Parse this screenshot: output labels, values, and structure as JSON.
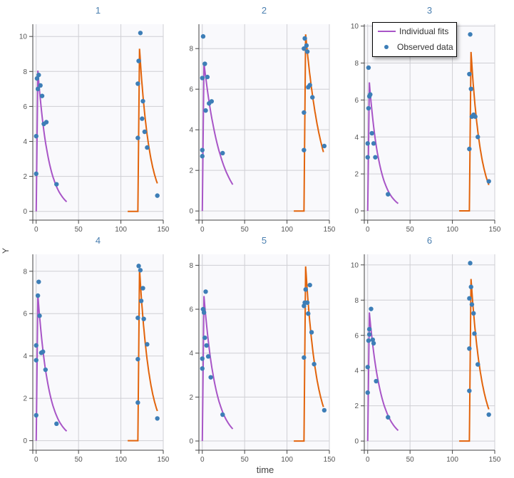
{
  "chart_data": {
    "type": "line",
    "xlabel": "time",
    "ylabel": "Y",
    "grid": true,
    "legend_placement": "top-right",
    "legend": [
      {
        "name": "Individual fits",
        "marker": "line",
        "color": "#a855c7"
      },
      {
        "name": "Observed data",
        "marker": "point",
        "color": "#3d7eb7"
      }
    ],
    "colors": {
      "fit_dose1": "#a855c7",
      "fit_dose2": "#e2640c",
      "observed": "#3d7eb7",
      "plot_bg": "#f9f9fc",
      "grid": "#cfcfd4",
      "title": "#4a7fb0"
    },
    "xlim": [
      -4,
      150
    ],
    "xticks": [
      0,
      50,
      100,
      150
    ],
    "panels": [
      {
        "title": "1",
        "ylim": [
          -0.5,
          10.7
        ],
        "yticks": [
          0,
          2,
          4,
          6,
          8,
          10
        ],
        "fit1": {
          "t": [
            0,
            2,
            36
          ],
          "y": [
            0,
            8.05,
            0.55
          ]
        },
        "fit2": {
          "t": [
            108,
            120,
            122,
            143
          ],
          "y": [
            0,
            0,
            9.3,
            1.6
          ]
        },
        "observed": [
          [
            0,
            2.15
          ],
          [
            0,
            4.3
          ],
          [
            1,
            7.6
          ],
          [
            2,
            7.0
          ],
          [
            3,
            7.8
          ],
          [
            5,
            7.2
          ],
          [
            7,
            6.6
          ],
          [
            9,
            5.0
          ],
          [
            12,
            5.1
          ],
          [
            24,
            1.55
          ],
          [
            120,
            4.2
          ],
          [
            120,
            7.3
          ],
          [
            121,
            8.6
          ],
          [
            123,
            10.2
          ],
          [
            125,
            5.3
          ],
          [
            126,
            6.3
          ],
          [
            128,
            4.55
          ],
          [
            131,
            3.65
          ],
          [
            143,
            0.9
          ]
        ]
      },
      {
        "title": "2",
        "ylim": [
          -0.45,
          9.2
        ],
        "yticks": [
          0,
          2,
          4,
          6,
          8
        ],
        "fit1": {
          "t": [
            0,
            2,
            36
          ],
          "y": [
            0,
            7.3,
            1.3
          ]
        },
        "fit2": {
          "t": [
            108,
            120,
            122,
            143
          ],
          "y": [
            0,
            0,
            8.7,
            2.9
          ]
        },
        "observed": [
          [
            0,
            2.7
          ],
          [
            0,
            3.0
          ],
          [
            0,
            6.55
          ],
          [
            1,
            8.6
          ],
          [
            3,
            7.25
          ],
          [
            4,
            4.95
          ],
          [
            6,
            6.6
          ],
          [
            8,
            5.3
          ],
          [
            11,
            5.4
          ],
          [
            24,
            2.85
          ],
          [
            120,
            3.0
          ],
          [
            120,
            4.85
          ],
          [
            120,
            8.0
          ],
          [
            121,
            8.5
          ],
          [
            123,
            8.15
          ],
          [
            124,
            7.85
          ],
          [
            125,
            6.1
          ],
          [
            127,
            6.2
          ],
          [
            130,
            5.6
          ],
          [
            144,
            3.2
          ]
        ]
      },
      {
        "title": "3",
        "ylim": [
          -0.5,
          10.1
        ],
        "yticks": [
          0,
          2,
          4,
          6,
          8,
          10
        ],
        "fit1": {
          "t": [
            0,
            2,
            36
          ],
          "y": [
            0,
            6.95,
            0.4
          ]
        },
        "fit2": {
          "t": [
            108,
            120,
            122,
            143
          ],
          "y": [
            0,
            0,
            8.6,
            1.4
          ]
        },
        "observed": [
          [
            0,
            2.9
          ],
          [
            0,
            3.65
          ],
          [
            1,
            5.55
          ],
          [
            1,
            7.75
          ],
          [
            2,
            6.2
          ],
          [
            3,
            6.3
          ],
          [
            5,
            4.2
          ],
          [
            7,
            3.65
          ],
          [
            9,
            2.9
          ],
          [
            24,
            0.9
          ],
          [
            120,
            3.35
          ],
          [
            120,
            7.4
          ],
          [
            121,
            9.55
          ],
          [
            122,
            6.6
          ],
          [
            123,
            5.1
          ],
          [
            125,
            5.2
          ],
          [
            127,
            5.1
          ],
          [
            130,
            4.0
          ],
          [
            143,
            1.6
          ]
        ]
      },
      {
        "title": "4",
        "ylim": [
          -0.45,
          8.8
        ],
        "yticks": [
          0,
          2,
          4,
          6,
          8
        ],
        "fit1": {
          "t": [
            0,
            2,
            36
          ],
          "y": [
            0,
            6.9,
            0.45
          ]
        },
        "fit2": {
          "t": [
            108,
            120,
            122,
            143
          ],
          "y": [
            0,
            0,
            8.1,
            1.4
          ]
        },
        "observed": [
          [
            0,
            1.2
          ],
          [
            0,
            3.8
          ],
          [
            0,
            4.5
          ],
          [
            2,
            6.85
          ],
          [
            3,
            7.5
          ],
          [
            4,
            5.9
          ],
          [
            6,
            4.15
          ],
          [
            8,
            4.2
          ],
          [
            11,
            3.35
          ],
          [
            24,
            0.8
          ],
          [
            120,
            1.8
          ],
          [
            120,
            3.85
          ],
          [
            120,
            5.8
          ],
          [
            121,
            8.25
          ],
          [
            123,
            8.05
          ],
          [
            124,
            6.6
          ],
          [
            126,
            7.2
          ],
          [
            127,
            5.75
          ],
          [
            131,
            4.55
          ],
          [
            143,
            1.05
          ]
        ]
      },
      {
        "title": "5",
        "ylim": [
          -0.42,
          8.5
        ],
        "yticks": [
          0,
          2,
          4,
          6,
          8
        ],
        "fit1": {
          "t": [
            0,
            2,
            36
          ],
          "y": [
            0,
            6.6,
            0.55
          ]
        },
        "fit2": {
          "t": [
            108,
            120,
            122,
            143
          ],
          "y": [
            0,
            0,
            7.95,
            1.55
          ]
        },
        "observed": [
          [
            0,
            3.3
          ],
          [
            0,
            3.75
          ],
          [
            1,
            6.0
          ],
          [
            2,
            5.85
          ],
          [
            3,
            4.7
          ],
          [
            4,
            6.8
          ],
          [
            5,
            4.35
          ],
          [
            7,
            3.85
          ],
          [
            10,
            2.9
          ],
          [
            24,
            1.2
          ],
          [
            120,
            3.8
          ],
          [
            120,
            6.15
          ],
          [
            121,
            6.3
          ],
          [
            122,
            6.9
          ],
          [
            124,
            6.3
          ],
          [
            125,
            5.8
          ],
          [
            127,
            7.1
          ],
          [
            129,
            4.95
          ],
          [
            132,
            3.5
          ],
          [
            144,
            1.4
          ]
        ]
      },
      {
        "title": "6",
        "ylim": [
          -0.52,
          10.6
        ],
        "yticks": [
          0,
          2,
          4,
          6,
          8,
          10
        ],
        "fit1": {
          "t": [
            0,
            2,
            36
          ],
          "y": [
            0,
            7.3,
            0.6
          ]
        },
        "fit2": {
          "t": [
            108,
            120,
            122,
            143
          ],
          "y": [
            0,
            0,
            9.2,
            1.8
          ]
        },
        "observed": [
          [
            0,
            2.75
          ],
          [
            0,
            4.2
          ],
          [
            1,
            5.7
          ],
          [
            2,
            6.35
          ],
          [
            2,
            6.05
          ],
          [
            4,
            7.5
          ],
          [
            6,
            5.75
          ],
          [
            7,
            5.55
          ],
          [
            10,
            3.4
          ],
          [
            24,
            1.35
          ],
          [
            120,
            2.85
          ],
          [
            120,
            5.25
          ],
          [
            120,
            8.1
          ],
          [
            121,
            10.1
          ],
          [
            122,
            8.75
          ],
          [
            123,
            7.75
          ],
          [
            125,
            7.25
          ],
          [
            126,
            6.1
          ],
          [
            130,
            4.35
          ],
          [
            143,
            1.5
          ]
        ]
      }
    ]
  }
}
